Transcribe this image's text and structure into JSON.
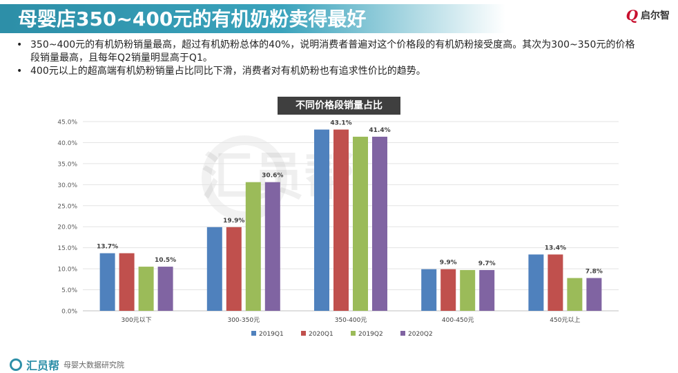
{
  "header": {
    "title": "母婴店350~400元的有机奶粉卖得最好",
    "logo_mark": "Q",
    "logo_text": "启尔智"
  },
  "bullets": [
    "350~400元的有机奶粉销量最高，超过有机奶粉总体的40%，说明消费者普遍对这个价格段的有机奶粉接受度高。其次为300~350元的价格段销量最高，且每年Q2销量明显高于Q1。",
    "400元以上的超高端有机奶粉销量占比同比下滑，消费者对有机奶粉也有追求性价比的趋势。"
  ],
  "watermark": "汇员帮",
  "footer": {
    "name": "汇员帮",
    "sub": "母婴大数据研究院"
  },
  "colors": {
    "accent": "#2d8fa8",
    "series": [
      "#4f81bd",
      "#c0504d",
      "#9bbb59",
      "#8064a2"
    ]
  },
  "chart_data": {
    "type": "bar",
    "title": "不同价格段销量占比",
    "categories": [
      "300元以下",
      "300-350元",
      "350-400元",
      "400-450元",
      "450元以上"
    ],
    "series": [
      {
        "name": "2019Q1",
        "values": [
          13.7,
          19.9,
          43.1,
          9.9,
          13.4
        ]
      },
      {
        "name": "2020Q1",
        "values": [
          13.7,
          19.9,
          43.1,
          9.9,
          13.4
        ]
      },
      {
        "name": "2019Q2",
        "values": [
          10.5,
          30.6,
          41.4,
          9.7,
          7.8
        ]
      },
      {
        "name": "2020Q2",
        "values": [
          10.5,
          30.6,
          41.4,
          9.7,
          7.8
        ]
      }
    ],
    "data_labels": [
      {
        "category_index": 0,
        "series_index": 0,
        "text": "13.7%"
      },
      {
        "category_index": 0,
        "series_index": 3,
        "text": "10.5%"
      },
      {
        "category_index": 1,
        "series_index": 1,
        "text": "19.9%"
      },
      {
        "category_index": 1,
        "series_index": 3,
        "text": "30.6%"
      },
      {
        "category_index": 2,
        "series_index": 1,
        "text": "43.1%"
      },
      {
        "category_index": 2,
        "series_index": 3,
        "text": "41.4%"
      },
      {
        "category_index": 3,
        "series_index": 1,
        "text": "9.9%"
      },
      {
        "category_index": 3,
        "series_index": 3,
        "text": "9.7%"
      },
      {
        "category_index": 4,
        "series_index": 1,
        "text": "13.4%"
      },
      {
        "category_index": 4,
        "series_index": 3,
        "text": "7.8%"
      }
    ],
    "yticks": [
      "0.0%",
      "5.0%",
      "10.0%",
      "15.0%",
      "20.0%",
      "25.0%",
      "30.0%",
      "35.0%",
      "40.0%",
      "45.0%"
    ],
    "ylim": [
      0,
      45
    ],
    "grid": true,
    "legend_position": "bottom"
  }
}
